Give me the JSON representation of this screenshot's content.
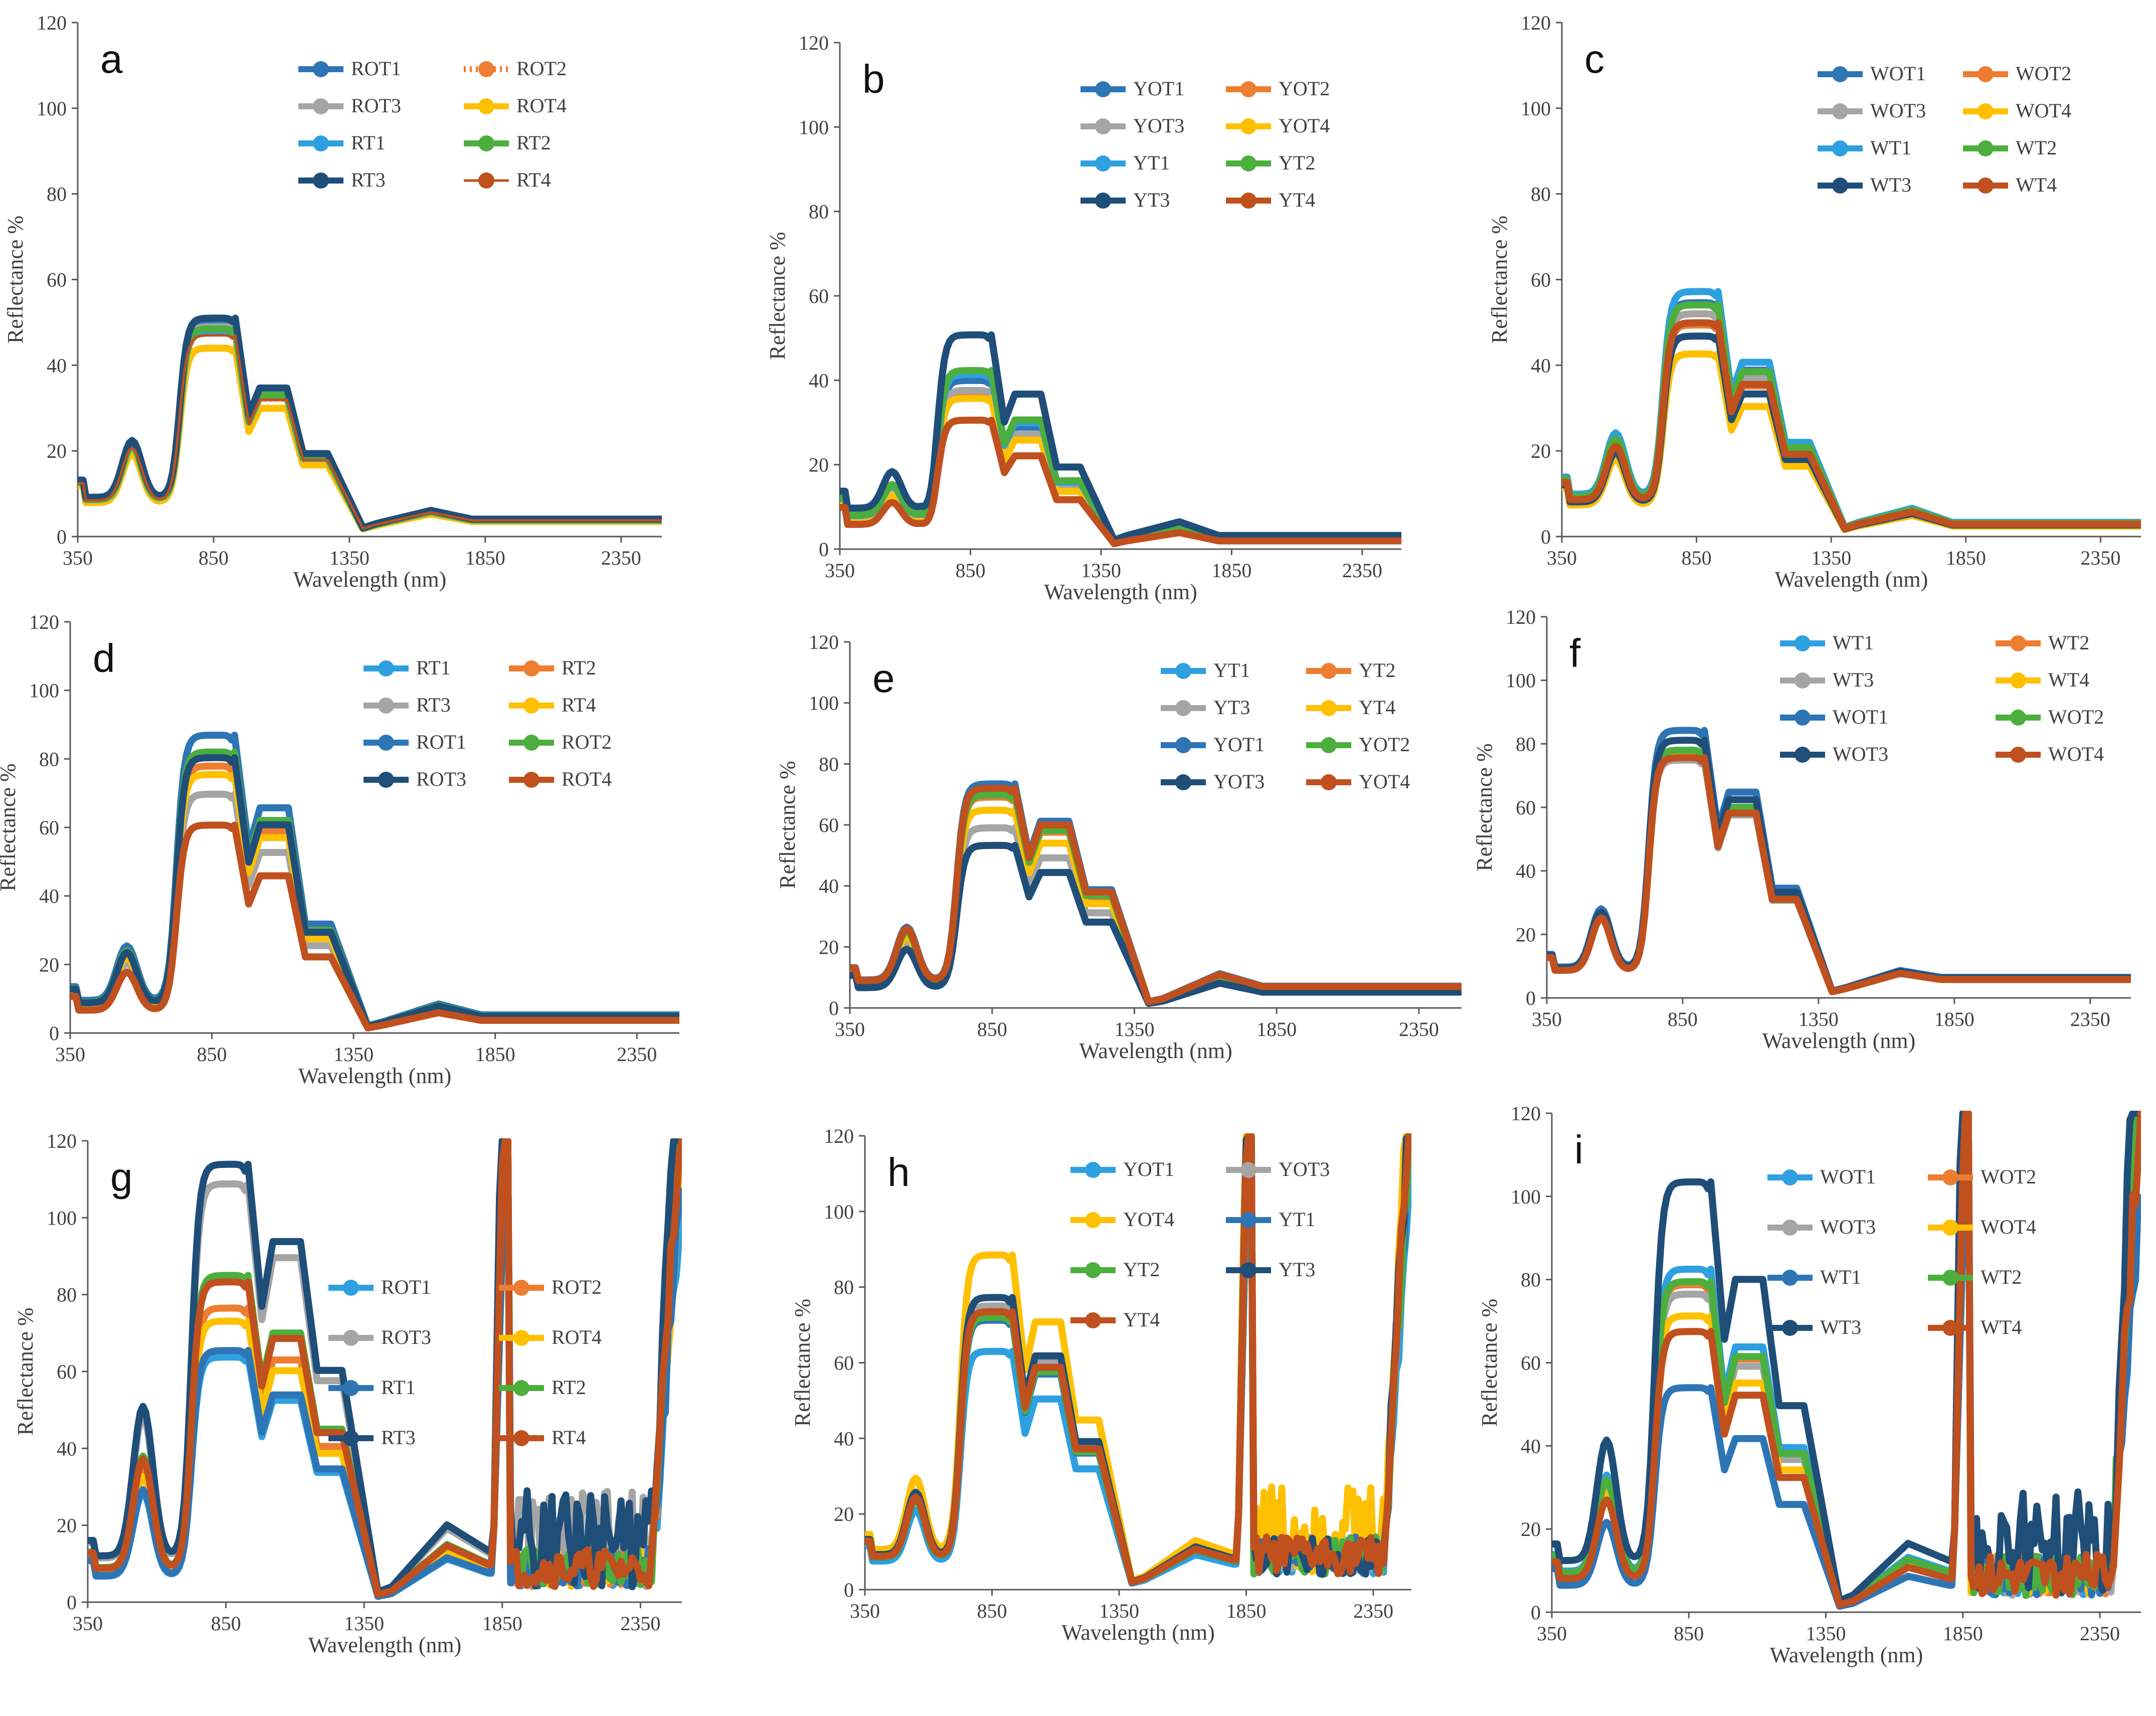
{
  "figure": {
    "description_free": true
  },
  "colors": {
    "blue": "#2e75b6",
    "orange": "#ed7d31",
    "gray": "#a5a5a5",
    "yellow": "#ffc000",
    "lightblue": "#2ea0e0",
    "green": "#4caf3d",
    "navy": "#1f4e79",
    "darkblue": "#255e91",
    "brown": "#c0501e"
  },
  "chart_data": [
    {
      "id": "a",
      "type": "line",
      "panel_label": "a",
      "xlabel": "Wavelength (nm)",
      "ylabel": "Reflectance %",
      "xlim": [
        350,
        2500
      ],
      "ylim": [
        0,
        120
      ],
      "xticks": [
        350,
        850,
        1350,
        1850,
        2350
      ],
      "yticks": [
        0,
        20,
        40,
        60,
        80,
        100,
        120
      ],
      "legend_columns": 2,
      "series": [
        {
          "name": "ROT1",
          "color": "#2e75b6",
          "scale": 1.0
        },
        {
          "name": "ROT2",
          "color": "#ed7d31",
          "scale": 0.95,
          "dotted": true
        },
        {
          "name": "ROT3",
          "color": "#a5a5a5",
          "scale": 0.98
        },
        {
          "name": "ROT4",
          "color": "#ffc000",
          "scale": 0.88
        },
        {
          "name": "RT1",
          "color": "#2ea0e0",
          "scale": 0.96
        },
        {
          "name": "RT2",
          "color": "#4caf3d",
          "scale": 0.97
        },
        {
          "name": "RT3",
          "color": "#1f4e79",
          "scale": 1.02
        },
        {
          "name": "RT4",
          "color": "#c0501e",
          "scale": 0.94,
          "thin": true
        }
      ],
      "profile": {
        "p550": 22,
        "p800": 50,
        "p1050": 34,
        "p1250": 19,
        "p1650": 6,
        "p2200": 4,
        "min670": 11,
        "noise": false
      }
    },
    {
      "id": "b",
      "type": "line",
      "panel_label": "b",
      "xlabel": "Wavelength (nm)",
      "ylabel": "Reflectance %",
      "xlim": [
        350,
        2500
      ],
      "ylim": [
        0,
        120
      ],
      "xticks": [
        350,
        850,
        1350,
        1850,
        2350
      ],
      "yticks": [
        0,
        20,
        40,
        60,
        80,
        100,
        120
      ],
      "legend_columns": 2,
      "series": [
        {
          "name": "YOT1",
          "color": "#2e75b6",
          "scale": 0.85
        },
        {
          "name": "YOT2",
          "color": "#ed7d31",
          "scale": 0.78
        },
        {
          "name": "YOT3",
          "color": "#a5a5a5",
          "scale": 0.8
        },
        {
          "name": "YOT4",
          "color": "#ffc000",
          "scale": 0.76
        },
        {
          "name": "YT1",
          "color": "#2ea0e0",
          "scale": 0.88
        },
        {
          "name": "YT2",
          "color": "#4caf3d",
          "scale": 0.9
        },
        {
          "name": "YT3",
          "color": "#1f4e79",
          "scale": 1.08
        },
        {
          "name": "YT4",
          "color": "#c0501e",
          "scale": 0.65
        }
      ],
      "profile": {
        "p550": 17,
        "p800": 47,
        "p1050": 34,
        "p1250": 18,
        "p1650": 6,
        "p2200": 3,
        "min670": 8,
        "noise": false
      }
    },
    {
      "id": "c",
      "type": "line",
      "panel_label": "c",
      "xlabel": "Wavelength (nm)",
      "ylabel": "Reflectance %",
      "xlim": [
        350,
        2500
      ],
      "ylim": [
        0,
        120
      ],
      "xticks": [
        350,
        850,
        1350,
        1850,
        2350
      ],
      "yticks": [
        0,
        20,
        40,
        60,
        80,
        100,
        120
      ],
      "legend_columns": 2,
      "series": [
        {
          "name": "WOT1",
          "color": "#2e75b6",
          "scale": 1.05
        },
        {
          "name": "WOT2",
          "color": "#ed7d31",
          "scale": 0.95
        },
        {
          "name": "WOT3",
          "color": "#a5a5a5",
          "scale": 1.0
        },
        {
          "name": "WOT4",
          "color": "#ffc000",
          "scale": 0.82
        },
        {
          "name": "WT1",
          "color": "#2ea0e0",
          "scale": 1.1
        },
        {
          "name": "WT2",
          "color": "#4caf3d",
          "scale": 1.04
        },
        {
          "name": "WT3",
          "color": "#1f4e79",
          "scale": 0.9
        },
        {
          "name": "WT4",
          "color": "#c0501e",
          "scale": 0.96
        }
      ],
      "profile": {
        "p550": 22,
        "p800": 52,
        "p1050": 37,
        "p1250": 20,
        "p1650": 6,
        "p2200": 3,
        "min670": 9,
        "noise": false
      }
    },
    {
      "id": "d",
      "type": "line",
      "panel_label": "d",
      "xlabel": "Wavelength (nm)",
      "ylabel": "Reflectance %",
      "xlim": [
        350,
        2500
      ],
      "ylim": [
        0,
        120
      ],
      "xticks": [
        350,
        850,
        1350,
        1850,
        2350
      ],
      "yticks": [
        0,
        20,
        40,
        60,
        80,
        100,
        120
      ],
      "legend_columns": 2,
      "series": [
        {
          "name": "RT1",
          "color": "#2ea0e0",
          "scale": 1.0
        },
        {
          "name": "RT2",
          "color": "#ed7d31",
          "scale": 0.95
        },
        {
          "name": "RT3",
          "color": "#a5a5a5",
          "scale": 0.85
        },
        {
          "name": "RT4",
          "color": "#ffc000",
          "scale": 0.92
        },
        {
          "name": "ROT1",
          "color": "#2e75b6",
          "scale": 1.06
        },
        {
          "name": "ROT2",
          "color": "#4caf3d",
          "scale": 1.0
        },
        {
          "name": "ROT3",
          "color": "#1f4e79",
          "scale": 0.98
        },
        {
          "name": "ROT4",
          "color": "#c0501e",
          "scale": 0.74
        }
      ],
      "profile": {
        "p550": 24,
        "p800": 82,
        "p1050": 62,
        "p1250": 30,
        "p1650": 8,
        "p2200": 5,
        "min670": 9,
        "noise": false
      }
    },
    {
      "id": "e",
      "type": "line",
      "panel_label": "e",
      "xlabel": "Wavelength (nm)",
      "ylabel": "Reflectance %",
      "xlim": [
        350,
        2500
      ],
      "ylim": [
        0,
        120
      ],
      "xticks": [
        350,
        850,
        1350,
        1850,
        2350
      ],
      "yticks": [
        0,
        20,
        40,
        60,
        80,
        100,
        120
      ],
      "legend_columns": 2,
      "series": [
        {
          "name": "YT1",
          "color": "#2ea0e0",
          "scale": 1.0
        },
        {
          "name": "YT2",
          "color": "#ed7d31",
          "scale": 0.96
        },
        {
          "name": "YT3",
          "color": "#a5a5a5",
          "scale": 0.82
        },
        {
          "name": "YT4",
          "color": "#ffc000",
          "scale": 0.9
        },
        {
          "name": "YOT1",
          "color": "#2e75b6",
          "scale": 1.02
        },
        {
          "name": "YOT2",
          "color": "#4caf3d",
          "scale": 0.97
        },
        {
          "name": "YOT3",
          "color": "#1f4e79",
          "scale": 0.74
        },
        {
          "name": "YOT4",
          "color": "#c0501e",
          "scale": 1.0
        }
      ],
      "profile": {
        "p550": 26,
        "p800": 72,
        "p1050": 60,
        "p1250": 38,
        "p1650": 11,
        "p2200": 7,
        "min670": 13,
        "noise": false
      }
    },
    {
      "id": "f",
      "type": "line",
      "panel_label": "f",
      "xlabel": "Wavelength (nm)",
      "ylabel": "Reflectance %",
      "xlim": [
        350,
        2500
      ],
      "ylim": [
        0,
        120
      ],
      "xticks": [
        350,
        850,
        1350,
        1850,
        2350
      ],
      "yticks": [
        0,
        20,
        40,
        60,
        80,
        100,
        120
      ],
      "legend_columns": 2,
      "series": [
        {
          "name": "WT1",
          "color": "#2ea0e0",
          "scale": 1.0
        },
        {
          "name": "WT2",
          "color": "#ed7d31",
          "scale": 0.97
        },
        {
          "name": "WT3",
          "color": "#a5a5a5",
          "scale": 0.96
        },
        {
          "name": "WT4",
          "color": "#ffc000",
          "scale": 0.98
        },
        {
          "name": "WOT1",
          "color": "#2e75b6",
          "scale": 1.08
        },
        {
          "name": "WOT2",
          "color": "#4caf3d",
          "scale": 1.0
        },
        {
          "name": "WOT3",
          "color": "#1f4e79",
          "scale": 1.04
        },
        {
          "name": "WOT4",
          "color": "#c0501e",
          "scale": 0.97
        }
      ],
      "profile": {
        "p550": 26,
        "p800": 78,
        "p1050": 60,
        "p1250": 32,
        "p1650": 8,
        "p2200": 6,
        "min670": 12,
        "noise": false
      }
    },
    {
      "id": "g",
      "type": "line",
      "panel_label": "g",
      "xlabel": "Wavelength (nm)",
      "ylabel": "Reflectance %",
      "xlim": [
        350,
        2500
      ],
      "ylim": [
        0,
        120
      ],
      "xticks": [
        350,
        850,
        1350,
        1850,
        2350
      ],
      "yticks": [
        0,
        20,
        40,
        60,
        80,
        100,
        120
      ],
      "legend_columns": 2,
      "series": [
        {
          "name": "ROT1",
          "color": "#2ea0e0",
          "scale": 0.75
        },
        {
          "name": "ROT2",
          "color": "#ed7d31",
          "scale": 0.9
        },
        {
          "name": "ROT3",
          "color": "#a5a5a5",
          "scale": 1.28
        },
        {
          "name": "ROT4",
          "color": "#ffc000",
          "scale": 0.86
        },
        {
          "name": "RT1",
          "color": "#2e75b6",
          "scale": 0.77
        },
        {
          "name": "RT2",
          "color": "#4caf3d",
          "scale": 1.0
        },
        {
          "name": "RT3",
          "color": "#1f4e79",
          "scale": 1.34
        },
        {
          "name": "RT4",
          "color": "#c0501e",
          "scale": 0.98
        }
      ],
      "profile": {
        "p550": 38,
        "p800": 85,
        "p1050": 70,
        "p1250": 45,
        "p1650": 15,
        "p2200": 10,
        "min670": 18,
        "noise": true
      }
    },
    {
      "id": "h",
      "type": "line",
      "panel_label": "h",
      "xlabel": "Wavelength (nm)",
      "ylabel": "Reflectance %",
      "xlim": [
        350,
        2500
      ],
      "ylim": [
        0,
        120
      ],
      "xticks": [
        350,
        850,
        1350,
        1850,
        2350
      ],
      "yticks": [
        0,
        20,
        40,
        60,
        80,
        100,
        120
      ],
      "legend_columns": 2,
      "series": [
        {
          "name": "YOT1",
          "color": "#2ea0e0",
          "scale": 0.84
        },
        {
          "name": "YOT3",
          "color": "#a5a5a5",
          "scale": 1.0
        },
        {
          "name": "YOT4",
          "color": "#ffc000",
          "scale": 1.18
        },
        {
          "name": "YT1",
          "color": "#2e75b6",
          "scale": 0.95
        },
        {
          "name": "YT2",
          "color": "#4caf3d",
          "scale": 0.96
        },
        {
          "name": "YT3",
          "color": "#1f4e79",
          "scale": 1.03
        },
        {
          "name": "YT4",
          "color": "#c0501e",
          "scale": 0.98
        }
      ],
      "profile": {
        "p550": 25,
        "p800": 75,
        "p1050": 60,
        "p1250": 38,
        "p1650": 11,
        "p2200": 8,
        "min670": 14,
        "noise": true
      }
    },
    {
      "id": "i",
      "type": "line",
      "panel_label": "i",
      "xlabel": "Wavelength (nm)",
      "ylabel": "Reflectance %",
      "xlim": [
        350,
        2500
      ],
      "ylim": [
        0,
        120
      ],
      "xticks": [
        350,
        850,
        1350,
        1850,
        2350
      ],
      "yticks": [
        0,
        20,
        40,
        60,
        80,
        100,
        120
      ],
      "legend_columns": 2,
      "series": [
        {
          "name": "WOT1",
          "color": "#2ea0e0",
          "scale": 1.1
        },
        {
          "name": "WOT2",
          "color": "#ed7d31",
          "scale": 1.05
        },
        {
          "name": "WOT3",
          "color": "#a5a5a5",
          "scale": 1.02
        },
        {
          "name": "WOT4",
          "color": "#ffc000",
          "scale": 0.95
        },
        {
          "name": "WT1",
          "color": "#2e75b6",
          "scale": 0.72
        },
        {
          "name": "WT2",
          "color": "#4caf3d",
          "scale": 1.06
        },
        {
          "name": "WT3",
          "color": "#1f4e79",
          "scale": 1.38
        },
        {
          "name": "WT4",
          "color": "#c0501e",
          "scale": 0.9
        }
      ],
      "profile": {
        "p550": 30,
        "p800": 75,
        "p1050": 58,
        "p1250": 36,
        "p1650": 12,
        "p2200": 9,
        "min670": 12,
        "noise": true
      }
    }
  ]
}
